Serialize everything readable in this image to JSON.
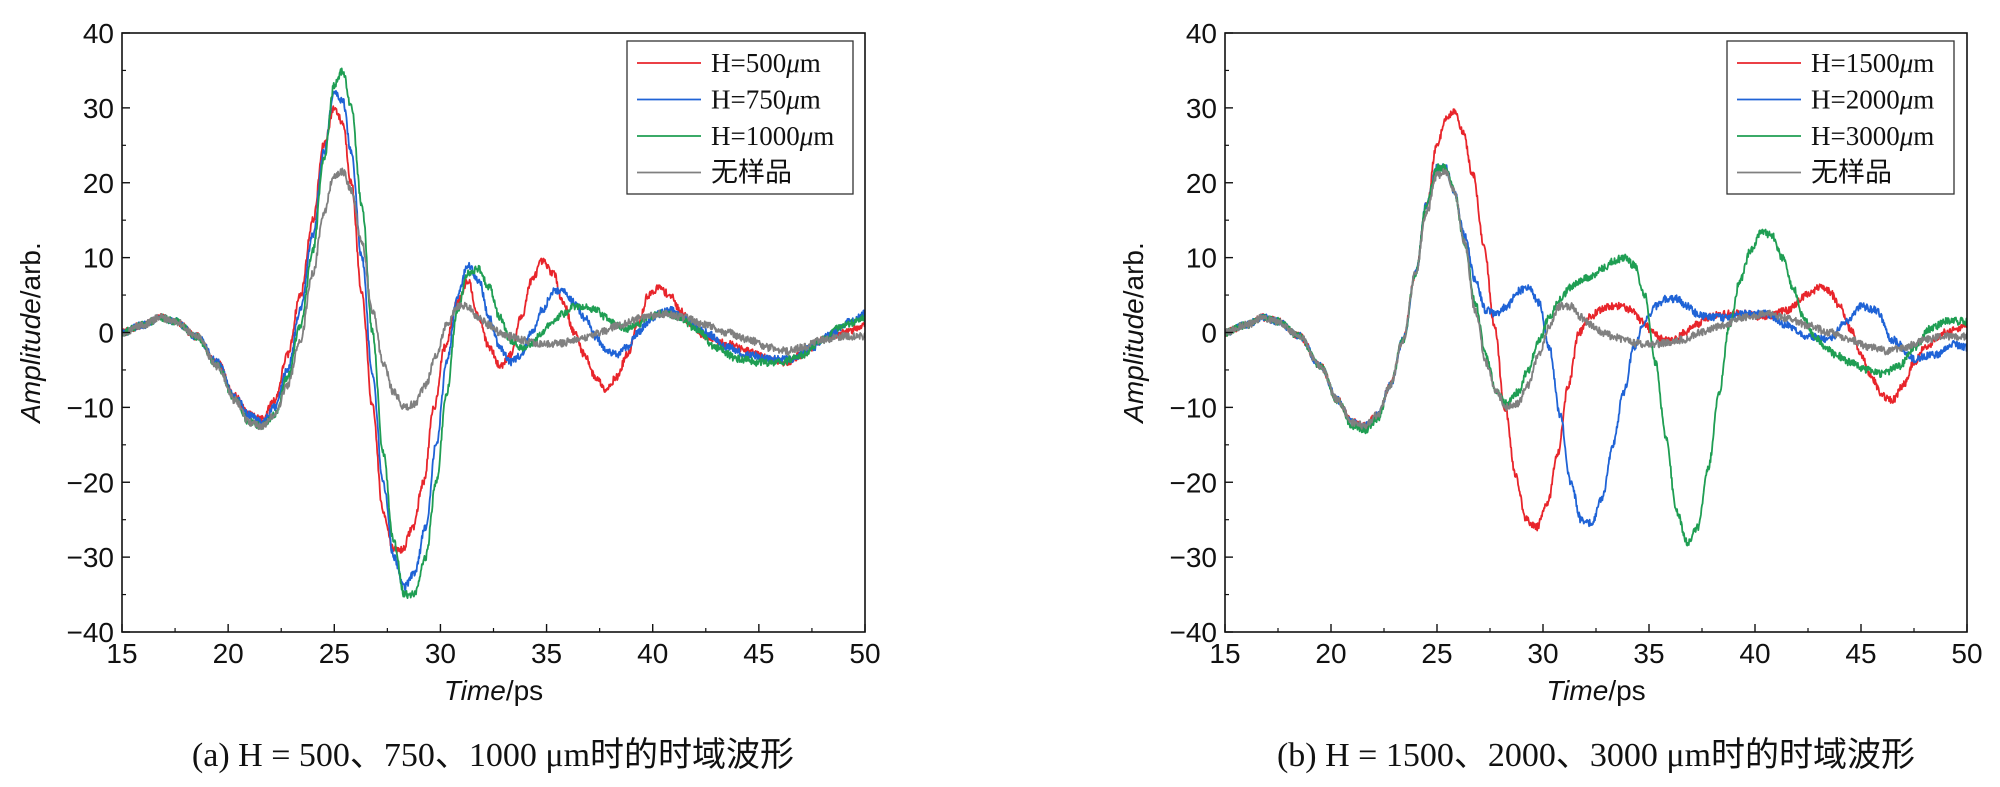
{
  "chart_data": [
    {
      "type": "line",
      "id": "a",
      "caption": "(a) H = 500、750、1000 μm时的时域波形",
      "xlabel_italic": "Time",
      "xlabel_unit": "/ps",
      "ylabel_italic": "Amplitude",
      "ylabel_unit": "/arb.",
      "xlim": [
        15,
        50
      ],
      "ylim": [
        -40,
        40
      ],
      "xticks": [
        15,
        20,
        25,
        30,
        35,
        40,
        45,
        50
      ],
      "yticks": [
        -40,
        -30,
        -20,
        -10,
        0,
        10,
        20,
        30,
        40
      ],
      "ytick_labels": [
        "−40",
        "−30",
        "−20",
        "−10",
        "0",
        "10",
        "20",
        "30",
        "40"
      ],
      "legend_position": "top-right",
      "series": [
        {
          "name": "H=500μm",
          "label_main": "H=500",
          "label_italic": "μ",
          "label_tail": "m",
          "color": "#e8252b",
          "x": [
            15,
            16,
            16.8,
            17.5,
            18.5,
            19.5,
            20.3,
            21,
            21.6,
            22.2,
            22.8,
            23.4,
            24,
            24.5,
            25,
            25.4,
            25.8,
            26.3,
            26.8,
            27.3,
            27.8,
            28.2,
            28.7,
            29.2,
            29.7,
            30.2,
            30.8,
            31.3,
            31.8,
            32.3,
            32.8,
            33.3,
            33.8,
            34.3,
            34.8,
            35.3,
            35.8,
            36.3,
            36.8,
            37.3,
            37.8,
            38.3,
            38.8,
            39.3,
            39.8,
            40.3,
            40.8,
            41.3,
            41.8,
            42.5,
            43.5,
            44.5,
            45.5,
            46.3,
            47,
            48,
            49,
            50
          ],
          "y": [
            0,
            1,
            2,
            1.5,
            -0.5,
            -4,
            -8.5,
            -11,
            -11.5,
            -9,
            -3,
            5,
            15,
            25,
            30,
            28,
            20,
            5,
            -10,
            -24,
            -29,
            -29,
            -26,
            -20,
            -10,
            -2,
            4,
            7,
            2,
            -2,
            -4.5,
            -3,
            2,
            7,
            9.5,
            8,
            4,
            0,
            -3,
            -6,
            -7.5,
            -6,
            -3,
            1,
            5,
            6,
            5,
            3,
            1,
            -0.5,
            -1.5,
            -2.5,
            -3.5,
            -4,
            -3,
            -1,
            0,
            1
          ]
        },
        {
          "name": "H=750μm",
          "label_main": "H=750",
          "label_italic": "μ",
          "label_tail": "m",
          "color": "#1f63d6",
          "x": [
            15,
            16,
            16.8,
            17.5,
            18.5,
            19.5,
            20.3,
            21,
            21.6,
            22.2,
            22.8,
            23.4,
            24,
            24.5,
            25,
            25.4,
            25.8,
            26.3,
            26.8,
            27.3,
            27.8,
            28.3,
            28.8,
            29.3,
            29.8,
            30.3,
            30.8,
            31.3,
            31.8,
            32.3,
            32.8,
            33.3,
            33.8,
            34.3,
            34.8,
            35.3,
            35.8,
            36.3,
            36.8,
            37.3,
            37.8,
            38.3,
            38.8,
            39.3,
            39.8,
            40.3,
            40.8,
            41.5,
            42.5,
            43.5,
            44.5,
            45.5,
            46.5,
            47.5,
            48.5,
            49.3,
            50
          ],
          "y": [
            0,
            1,
            2,
            1.5,
            -0.5,
            -4,
            -8.5,
            -11,
            -12,
            -10,
            -5,
            3,
            13,
            24,
            32,
            31,
            24,
            10,
            -6,
            -20,
            -30,
            -34,
            -32,
            -26,
            -15,
            -4,
            5,
            9,
            7,
            2,
            -2,
            -4,
            -3,
            0,
            3,
            5.5,
            5.5,
            4,
            2,
            -0.5,
            -2.5,
            -3,
            -2,
            0,
            1.5,
            2.5,
            3,
            2,
            0,
            -2,
            -3,
            -3.5,
            -3.5,
            -2,
            0,
            1.5,
            2.5
          ]
        },
        {
          "name": "H=1000μm",
          "label_main": "H=1000",
          "label_italic": "μ",
          "label_tail": "m",
          "color": "#1f9e53",
          "x": [
            15,
            16,
            16.8,
            17.5,
            18.5,
            19.5,
            20.3,
            21,
            21.6,
            22.2,
            22.8,
            23.4,
            24,
            24.5,
            25,
            25.4,
            25.8,
            26.3,
            26.8,
            27.3,
            27.8,
            28.3,
            28.8,
            29.3,
            29.8,
            30.3,
            30.8,
            31.3,
            31.8,
            32.3,
            32.8,
            33.3,
            33.8,
            34.3,
            34.8,
            35.3,
            35.8,
            36.3,
            36.8,
            37.3,
            37.8,
            38.3,
            38.8,
            39.3,
            39.8,
            40.3,
            40.8,
            41.3,
            42,
            43,
            44,
            45,
            46,
            47,
            48,
            49,
            50
          ],
          "y": [
            0,
            1,
            2,
            1.5,
            -0.5,
            -4.5,
            -9,
            -12,
            -12.5,
            -11,
            -6,
            1,
            11,
            23,
            33,
            35,
            30,
            17,
            0,
            -16,
            -28,
            -35,
            -35,
            -30,
            -20,
            -8,
            3,
            8,
            8.5,
            6,
            2,
            -1,
            -2,
            -1.5,
            0,
            1.5,
            2.5,
            3.5,
            3.5,
            3,
            2,
            1,
            0.5,
            1,
            2,
            2.5,
            2.5,
            2,
            0.5,
            -2,
            -3.5,
            -4,
            -4,
            -3,
            -1,
            1,
            2
          ]
        },
        {
          "name": "无样品",
          "label_main": "无样品",
          "label_italic": "",
          "label_tail": "",
          "color": "#808080",
          "x": [
            15,
            16,
            16.8,
            17.5,
            18.5,
            19.5,
            20.3,
            21,
            21.6,
            22.2,
            22.8,
            23.4,
            24,
            24.5,
            25,
            25.4,
            25.8,
            26.3,
            26.8,
            27.3,
            27.8,
            28.3,
            28.8,
            29.3,
            29.8,
            30.3,
            30.8,
            31.3,
            31.8,
            32.3,
            32.8,
            33.3,
            33.8,
            34.5,
            35.5,
            36.5,
            37.5,
            38.5,
            39.5,
            40.5,
            41.5,
            42.5,
            43.5,
            44.5,
            45.5,
            46.3,
            47,
            48,
            49,
            50
          ],
          "y": [
            0,
            1,
            2,
            1.5,
            -0.5,
            -4.5,
            -9,
            -12,
            -12.5,
            -11,
            -7,
            -1,
            8,
            16,
            21,
            21.5,
            19,
            12,
            3,
            -4,
            -8,
            -10,
            -9.5,
            -7,
            -3,
            1,
            3.5,
            3.5,
            2,
            1,
            0,
            -0.5,
            -1,
            -1.5,
            -1.5,
            -1,
            0,
            1,
            2,
            2.5,
            2,
            1,
            0,
            -1,
            -2,
            -2.5,
            -2,
            -1,
            -0.5,
            -0.5
          ]
        }
      ]
    },
    {
      "type": "line",
      "id": "b",
      "caption": "(b) H = 1500、2000、3000 μm时的时域波形",
      "xlabel_italic": "Time",
      "xlabel_unit": "/ps",
      "ylabel_italic": "Amplitude",
      "ylabel_unit": "/arb.",
      "xlim": [
        15,
        50
      ],
      "ylim": [
        -40,
        40
      ],
      "xticks": [
        15,
        20,
        25,
        30,
        35,
        40,
        45,
        50
      ],
      "yticks": [
        -40,
        -30,
        -20,
        -10,
        0,
        10,
        20,
        30,
        40
      ],
      "ytick_labels": [
        "−40",
        "−30",
        "−20",
        "−10",
        "0",
        "10",
        "20",
        "30",
        "40"
      ],
      "legend_position": "top-right",
      "series": [
        {
          "name": "H=1500μm",
          "label_main": "H=1500",
          "label_italic": "μ",
          "label_tail": "m",
          "color": "#e8252b",
          "x": [
            15,
            16,
            16.8,
            17.5,
            18.5,
            19.5,
            20.3,
            21,
            21.6,
            22.2,
            22.8,
            23.4,
            24,
            24.5,
            25,
            25.4,
            25.8,
            26.2,
            26.7,
            27.2,
            27.7,
            28.2,
            28.7,
            29.2,
            29.7,
            30.2,
            30.7,
            31.2,
            31.7,
            32.2,
            32.7,
            33.2,
            33.7,
            34.2,
            34.7,
            35.2,
            35.7,
            36.2,
            36.7,
            37.2,
            37.7,
            38.5,
            39.5,
            40.5,
            41.5,
            42.5,
            43,
            43.5,
            44,
            44.5,
            45,
            45.5,
            46,
            46.5,
            47,
            47.5,
            48,
            49,
            50
          ],
          "y": [
            0,
            1,
            2,
            1.5,
            -0.5,
            -4.5,
            -9,
            -12,
            -12.5,
            -11,
            -7,
            -1,
            8,
            17,
            25,
            28.5,
            29.5,
            27,
            21,
            12,
            1,
            -10,
            -19,
            -25,
            -26,
            -23,
            -16,
            -7,
            0,
            2,
            3,
            3.5,
            3.5,
            3,
            1.5,
            0,
            -1,
            -1,
            0,
            1,
            2,
            2.5,
            2.5,
            2,
            3,
            5,
            6,
            5.5,
            3.5,
            0.5,
            -3,
            -6,
            -8.5,
            -9,
            -7,
            -4,
            -2,
            0,
            1
          ]
        },
        {
          "name": "H=2000μm",
          "label_main": "H=2000",
          "label_italic": "μ",
          "label_tail": "m",
          "color": "#1f63d6",
          "x": [
            15,
            16,
            16.8,
            17.5,
            18.5,
            19.5,
            20.3,
            21,
            21.6,
            22.2,
            22.8,
            23.4,
            24,
            24.5,
            25,
            25.4,
            25.8,
            26.3,
            26.8,
            27.3,
            27.8,
            28.3,
            28.8,
            29.3,
            29.8,
            30.3,
            30.8,
            31.3,
            31.8,
            32.3,
            32.8,
            33.3,
            33.8,
            34.3,
            34.8,
            35.3,
            35.8,
            36.3,
            36.8,
            37.3,
            37.8,
            38.5,
            39.5,
            40.5,
            41.5,
            42.5,
            43.5,
            44.3,
            45,
            45.7,
            46.5,
            47.5,
            48.5,
            49.3,
            50
          ],
          "y": [
            0,
            1,
            2,
            1.5,
            -0.5,
            -4.5,
            -9,
            -12,
            -12.5,
            -11,
            -7,
            -1,
            8,
            17,
            22,
            22,
            19,
            13,
            7,
            3,
            2.5,
            3.5,
            5.5,
            6,
            4,
            -2,
            -11,
            -20,
            -25,
            -25.5,
            -22,
            -15,
            -8,
            -2,
            1.5,
            3.5,
            4.5,
            4.5,
            3.5,
            2.5,
            2,
            2,
            2.5,
            2.5,
            1,
            -0.5,
            -1,
            1.5,
            3.5,
            3,
            -1,
            -3.5,
            -3,
            -1.5,
            -2
          ]
        },
        {
          "name": "H=3000μm",
          "label_main": "H=3000",
          "label_italic": "μ",
          "label_tail": "m",
          "color": "#1f9e53",
          "x": [
            15,
            16,
            16.8,
            17.5,
            18.5,
            19.5,
            20.3,
            21,
            21.6,
            22.2,
            22.8,
            23.4,
            24,
            24.5,
            25,
            25.4,
            25.8,
            26.3,
            26.8,
            27.3,
            27.8,
            28.3,
            28.8,
            29.3,
            29.8,
            30.3,
            30.8,
            31.3,
            31.8,
            32.3,
            32.8,
            33.3,
            33.8,
            34.3,
            34.8,
            35.3,
            35.8,
            36.3,
            36.8,
            37.3,
            37.8,
            38.3,
            38.8,
            39.3,
            39.8,
            40.3,
            40.8,
            41.3,
            41.8,
            42.3,
            42.8,
            43.3,
            43.8,
            44.5,
            45.3,
            46,
            46.8,
            47.5,
            48.3,
            49,
            50
          ],
          "y": [
            0,
            1,
            2,
            1.5,
            -0.5,
            -4.5,
            -9,
            -12.5,
            -13,
            -11.5,
            -7,
            -1,
            8,
            17,
            22,
            22,
            19,
            12,
            4,
            -3,
            -8,
            -9.5,
            -8,
            -5,
            -1,
            2,
            4.5,
            6,
            7,
            7.5,
            8.5,
            9.5,
            10,
            9,
            5,
            -4,
            -14,
            -24,
            -28,
            -26,
            -18,
            -8,
            1,
            7,
            11,
            13.5,
            13,
            10,
            6,
            2,
            -0.5,
            -2,
            -3,
            -4,
            -5,
            -5.5,
            -4.5,
            -2,
            0.5,
            1.5,
            1.5
          ]
        },
        {
          "name": "无样品",
          "label_main": "无样品",
          "label_italic": "",
          "label_tail": "",
          "color": "#808080",
          "x": [
            15,
            16,
            16.8,
            17.5,
            18.5,
            19.5,
            20.3,
            21,
            21.6,
            22.2,
            22.8,
            23.4,
            24,
            24.5,
            25,
            25.4,
            25.8,
            26.3,
            26.8,
            27.3,
            27.8,
            28.3,
            28.8,
            29.3,
            29.8,
            30.3,
            30.8,
            31.3,
            31.8,
            32.3,
            32.8,
            33.3,
            33.8,
            34.5,
            35.5,
            36.5,
            37.5,
            38.5,
            39.5,
            40.5,
            41.5,
            42.5,
            43.5,
            44.5,
            45.5,
            46.3,
            47,
            48,
            49,
            50
          ],
          "y": [
            0,
            1,
            2,
            1.5,
            -0.5,
            -4.5,
            -9,
            -12,
            -12.5,
            -11,
            -7,
            -1,
            8,
            16,
            21,
            21.5,
            19,
            12,
            3,
            -4,
            -8,
            -10,
            -9.5,
            -7,
            -3,
            1,
            3.5,
            3.5,
            2,
            1,
            0,
            -0.5,
            -1,
            -1.5,
            -1.5,
            -1,
            0,
            1,
            2,
            2.5,
            2,
            1,
            0,
            -1,
            -2,
            -2.5,
            -2,
            -1,
            -0.5,
            -0.5
          ]
        }
      ]
    }
  ]
}
